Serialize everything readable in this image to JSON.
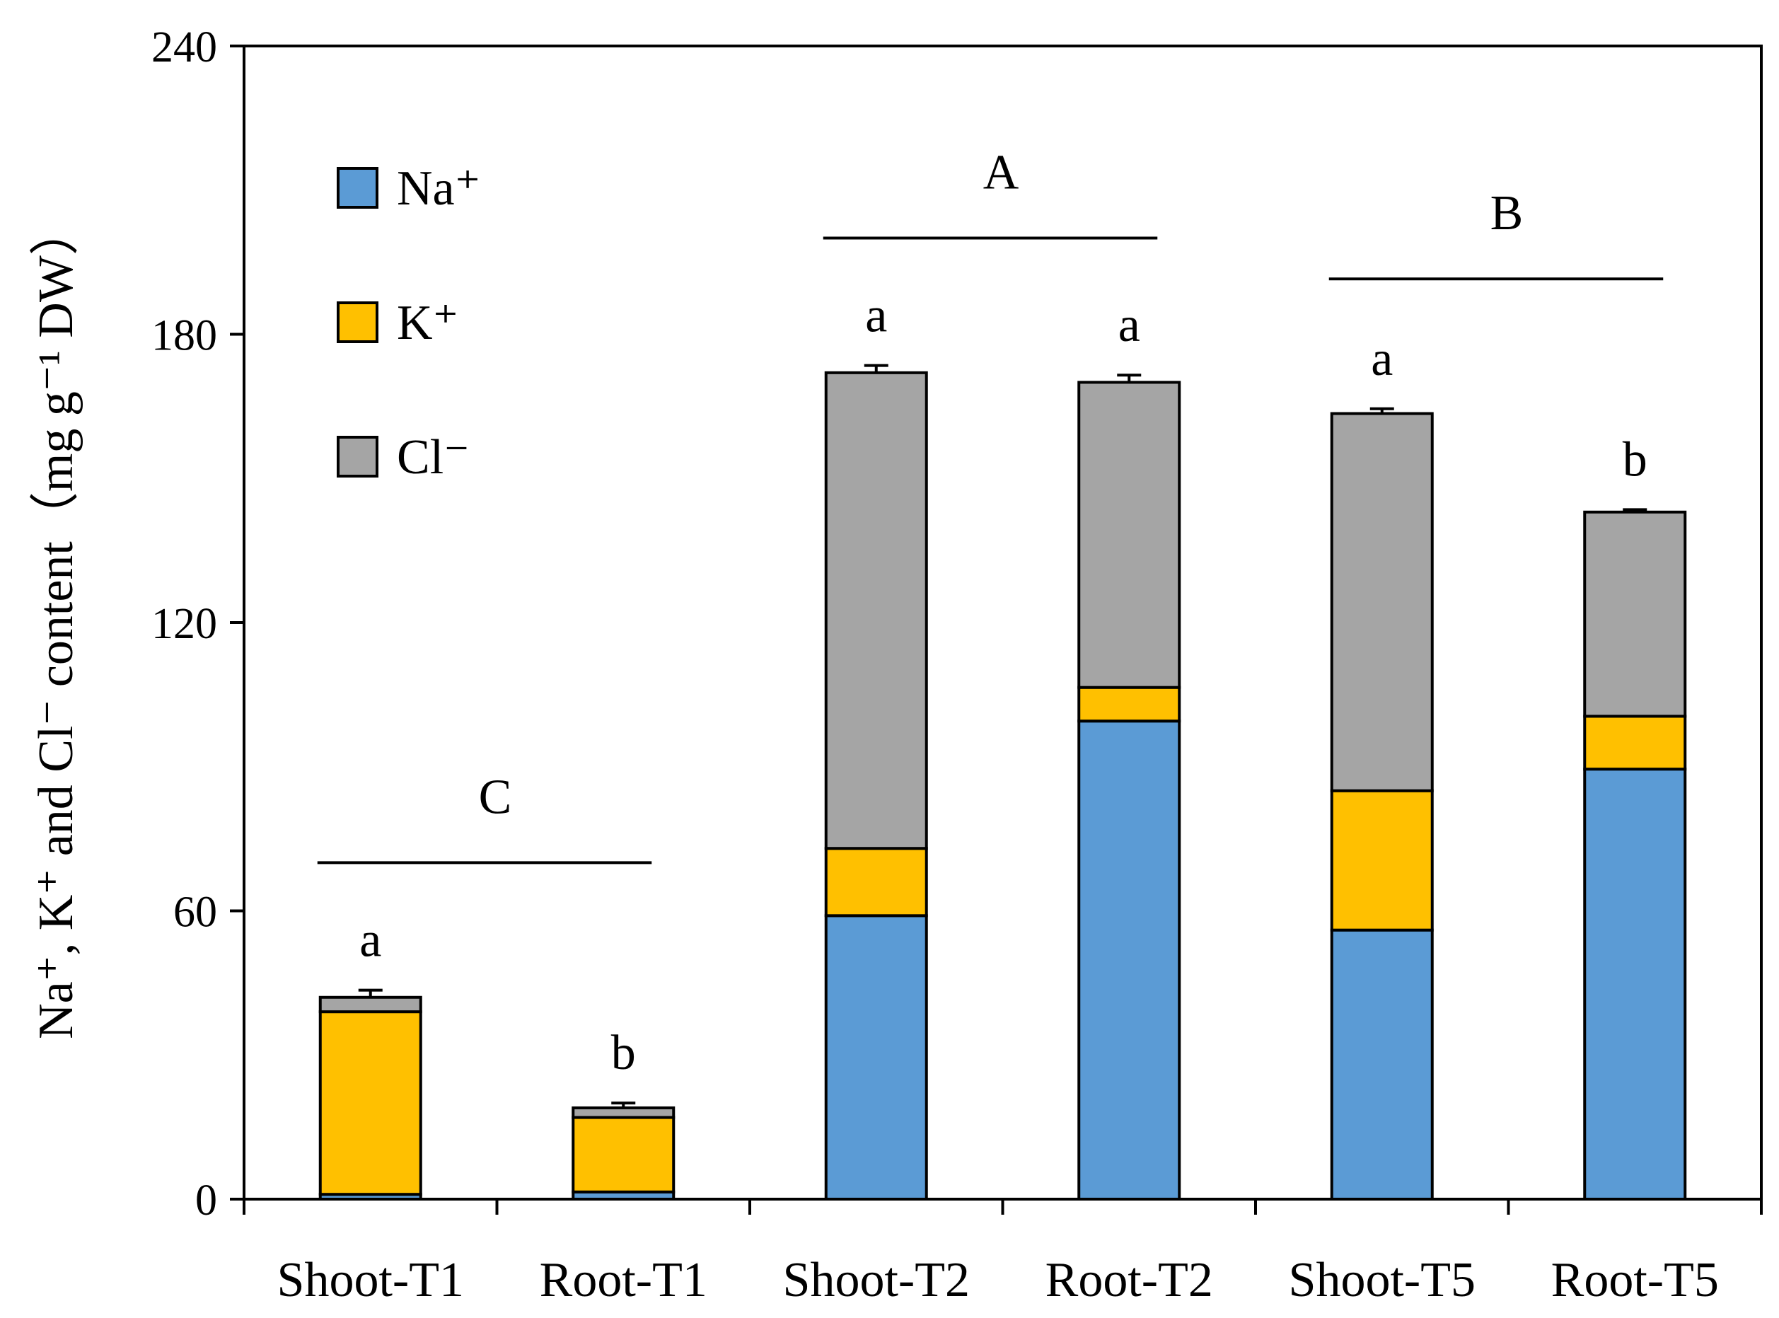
{
  "chart_data": {
    "type": "bar",
    "stacked": true,
    "categories": [
      "Shoot-T1",
      "Root-T1",
      "Shoot-T2",
      "Root-T2",
      "Shoot-T5",
      "Root-T5"
    ],
    "ylabel": "Na⁺, K⁺ and Cl⁻ content（mg g⁻¹ DW）",
    "ylim": [
      0,
      240
    ],
    "yticks": [
      0,
      60,
      120,
      180,
      240
    ],
    "grid": false,
    "legend": {
      "placement": "top-left",
      "entries": [
        "Na⁺",
        "K⁺",
        "Cl⁻"
      ]
    },
    "series": [
      {
        "name": "Na⁺",
        "color": "#5b9bd5",
        "values": [
          1,
          1.5,
          59,
          99.5,
          56,
          89.5
        ],
        "errors": [
          0,
          0,
          2.5,
          1.5,
          1,
          1
        ]
      },
      {
        "name": "K⁺",
        "color": "#ffc000",
        "values": [
          38,
          15.5,
          14,
          7,
          29,
          11
        ],
        "errors": [
          0,
          0,
          0,
          0,
          0,
          0
        ]
      },
      {
        "name": "Cl⁻",
        "color": "#a5a5a5",
        "values": [
          3,
          2,
          99,
          63.5,
          78.5,
          42.5
        ],
        "errors": [
          1.5,
          1,
          1.5,
          1.5,
          1,
          0.5
        ]
      }
    ],
    "significance_letters": [
      "a",
      "b",
      "a",
      "a",
      "a",
      "b"
    ],
    "group_letters": [
      {
        "label": "C",
        "from": 0,
        "to": 1
      },
      {
        "label": "A",
        "from": 2,
        "to": 3
      },
      {
        "label": "B",
        "from": 4,
        "to": 5
      }
    ]
  }
}
